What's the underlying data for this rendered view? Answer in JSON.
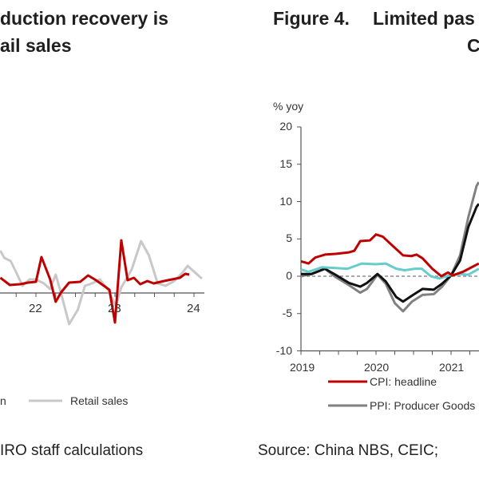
{
  "left_figure": {
    "title_line1": "duction recovery is",
    "title_line2": "ail sales",
    "legend_partial": "n",
    "legend_retail": "Retail sales",
    "source": "IRO staff calculations"
  },
  "right_figure": {
    "figure_label": "Figure 4.",
    "title_line1": "Limited pas",
    "title_line2": "C",
    "source": "Source: China NBS, CEIC;"
  },
  "chart_data": [
    {
      "type": "line",
      "title": "",
      "xlabel": "",
      "ylabel": "",
      "x_tick_labels": [
        "22",
        "23",
        "24"
      ],
      "x_ticks": [
        22,
        23,
        24
      ],
      "xlim": [
        21.55,
        24.15
      ],
      "ylim": [
        -12,
        12
      ],
      "grid": false,
      "legend_placement": "bottom",
      "series": [
        {
          "name": "n",
          "color": "#c00000",
          "x": [
            21.55,
            21.67,
            21.8,
            21.9,
            22.0,
            22.07,
            22.18,
            22.25,
            22.32,
            22.42,
            22.56,
            22.66,
            22.76,
            22.86,
            22.93,
            23.0,
            23.08,
            23.16,
            23.24,
            23.32,
            23.41,
            23.49,
            23.62,
            23.72,
            23.82,
            23.89,
            23.94
          ],
          "y": [
            0.8,
            -1.0,
            -0.8,
            -0.4,
            -0.2,
            6.0,
            0.4,
            -5.2,
            -2.8,
            -0.4,
            -0.2,
            1.4,
            0.2,
            -1.2,
            -2.2,
            -10.4,
            10.2,
            0.2,
            0.8,
            -0.8,
            0,
            -0.6,
            0,
            0.4,
            0.8,
            1.8,
            1.6
          ]
        },
        {
          "name": "Retail sales",
          "color": "#c8c8c8",
          "x": [
            21.55,
            21.6,
            21.68,
            21.75,
            21.83,
            21.92,
            22.0,
            22.1,
            22.18,
            22.25,
            22.32,
            22.42,
            22.53,
            22.62,
            22.71,
            22.81,
            22.91,
            23.01,
            23.08,
            23.21,
            23.33,
            23.43,
            23.54,
            23.64,
            23.75,
            23.85,
            23.92,
            24.02,
            24.1
          ],
          "y": [
            7.6,
            5.8,
            5.0,
            2.2,
            -1.2,
            0.4,
            0.4,
            -0.6,
            -2.0,
            1.6,
            -3.2,
            -10.8,
            -7.2,
            -1.2,
            -0.6,
            0.4,
            -2.2,
            -6.2,
            -1.6,
            2.8,
            10.0,
            6.4,
            -0.6,
            -1.2,
            0,
            2.0,
            3.8,
            2.0,
            0.6
          ]
        }
      ]
    },
    {
      "type": "line",
      "title": "",
      "xlabel": "",
      "ylabel": "% yoy",
      "x_tick_labels": [
        "2019",
        "2020",
        "2021"
      ],
      "x_ticks": [
        2019,
        2020,
        2021
      ],
      "y_tick_labels": [
        "20",
        "15",
        "10",
        "5",
        "0",
        "-5",
        "-10"
      ],
      "y_ticks": [
        20,
        15,
        10,
        5,
        0,
        -5,
        -10
      ],
      "ylim": [
        -10,
        20
      ],
      "grid": false,
      "zero_line": "dashed",
      "legend_placement": "bottom",
      "series": [
        {
          "name": "CPI: headline",
          "color": "#c00000",
          "x": [
            2019.0,
            2019.1,
            2019.19,
            2019.32,
            2019.46,
            2019.64,
            2019.71,
            2019.79,
            2019.92,
            2020.0,
            2020.09,
            2020.23,
            2020.36,
            2020.47,
            2020.54,
            2020.62,
            2020.75,
            2020.87,
            2020.96,
            2021.02,
            2021.16,
            2021.37
          ],
          "y": [
            2.0,
            1.7,
            2.5,
            2.9,
            3.0,
            3.2,
            3.4,
            4.7,
            4.8,
            5.6,
            5.3,
            4.0,
            2.8,
            2.7,
            2.9,
            2.4,
            1.0,
            0,
            0.5,
            0.1,
            0.6,
            1.7
          ]
        },
        {
          "color": "#66cccc",
          "x": [
            2019.0,
            2019.1,
            2019.28,
            2019.46,
            2019.62,
            2019.81,
            2019.99,
            2020.13,
            2020.27,
            2020.38,
            2020.52,
            2020.61,
            2020.73,
            2020.84,
            2020.98,
            2021.12,
            2021.23,
            2021.37
          ],
          "y": [
            0.9,
            0.6,
            1.2,
            1.1,
            1.0,
            1.7,
            1.6,
            1.7,
            1.0,
            0.8,
            1.0,
            1.0,
            0,
            -0.3,
            0.1,
            0.3,
            0.2,
            1.0
          ]
        },
        {
          "color": "#111111",
          "x": [
            2019.0,
            2019.14,
            2019.32,
            2019.46,
            2019.64,
            2019.79,
            2019.88,
            2020.02,
            2020.13,
            2020.27,
            2020.36,
            2020.48,
            2020.62,
            2020.77,
            2020.88,
            2021.0,
            2021.12,
            2021.23,
            2021.34,
            2021.37
          ],
          "y": [
            0.3,
            0.3,
            1.0,
            0.2,
            -0.9,
            -1.4,
            -0.9,
            0.3,
            -0.7,
            -2.8,
            -3.4,
            -2.6,
            -1.7,
            -1.8,
            -1.0,
            0.1,
            2.1,
            6.6,
            9.3,
            9.7
          ]
        },
        {
          "name": "PPI: Producer Goods",
          "color": "#808080",
          "x": [
            2019.0,
            2019.14,
            2019.32,
            2019.46,
            2019.64,
            2019.79,
            2019.88,
            2020.02,
            2020.13,
            2020.25,
            2020.36,
            2020.48,
            2020.62,
            2020.77,
            2020.88,
            2021.0,
            2021.12,
            2021.23,
            2021.34,
            2021.37
          ],
          "y": [
            0,
            0.3,
            1.0,
            -0.1,
            -1.2,
            -2.2,
            -1.7,
            0.2,
            -1.0,
            -3.6,
            -4.7,
            -3.4,
            -2.5,
            -2.4,
            -1.4,
            0.1,
            2.8,
            7.9,
            12.1,
            12.6
          ]
        }
      ]
    }
  ]
}
